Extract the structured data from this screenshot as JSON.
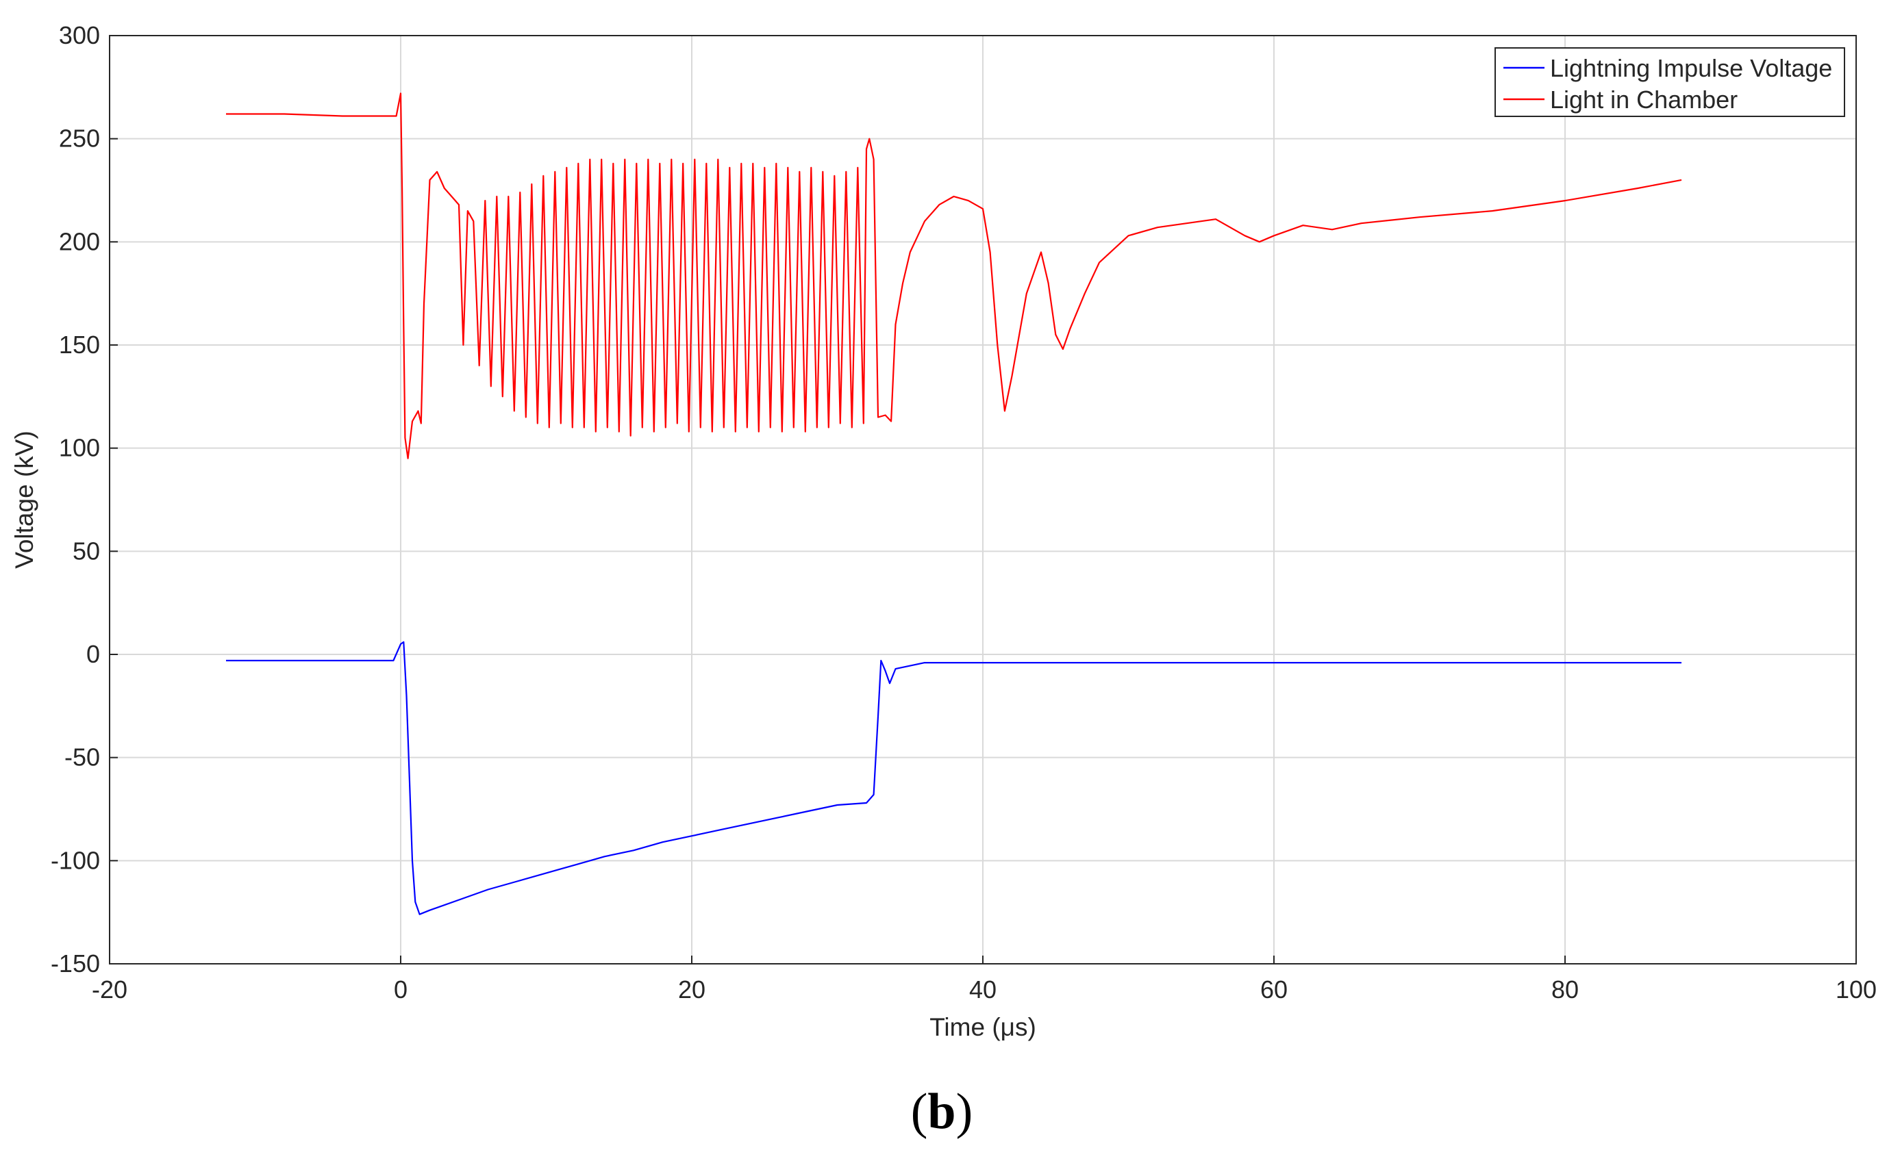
{
  "figure": {
    "panel_label_open": "(",
    "panel_label_letter": "b",
    "panel_label_close": ")"
  },
  "chart_data": {
    "type": "line",
    "title": "",
    "xlabel": "Time (μs)",
    "ylabel": "Voltage (kV)",
    "xlim": [
      -20,
      100
    ],
    "ylim": [
      -150,
      300
    ],
    "x_ticks": [
      -20,
      0,
      20,
      40,
      60,
      80,
      100
    ],
    "y_ticks": [
      -150,
      -100,
      -50,
      0,
      50,
      100,
      150,
      200,
      250,
      300
    ],
    "grid": true,
    "legend_position": "top-right",
    "series": [
      {
        "name": "Lightning Impulse Voltage",
        "color": "#0000ff",
        "points": [
          [
            -12,
            -3
          ],
          [
            -8,
            -3
          ],
          [
            -4,
            -3
          ],
          [
            -0.5,
            -3
          ],
          [
            0,
            5
          ],
          [
            0.2,
            6
          ],
          [
            0.4,
            -20
          ],
          [
            0.6,
            -60
          ],
          [
            0.8,
            -100
          ],
          [
            1,
            -120
          ],
          [
            1.3,
            -126
          ],
          [
            2,
            -124
          ],
          [
            4,
            -119
          ],
          [
            6,
            -114
          ],
          [
            8,
            -110
          ],
          [
            10,
            -106
          ],
          [
            12,
            -102
          ],
          [
            14,
            -98
          ],
          [
            16,
            -95
          ],
          [
            18,
            -91
          ],
          [
            20,
            -88
          ],
          [
            22,
            -85
          ],
          [
            24,
            -82
          ],
          [
            26,
            -79
          ],
          [
            28,
            -76
          ],
          [
            30,
            -73
          ],
          [
            32,
            -72
          ],
          [
            32.5,
            -68
          ],
          [
            32.8,
            -30
          ],
          [
            33,
            -3
          ],
          [
            33.3,
            -8
          ],
          [
            33.6,
            -14
          ],
          [
            34,
            -7
          ],
          [
            36,
            -4
          ],
          [
            40,
            -4
          ],
          [
            50,
            -4
          ],
          [
            60,
            -4
          ],
          [
            70,
            -4
          ],
          [
            80,
            -4
          ],
          [
            88,
            -4
          ]
        ]
      },
      {
        "name": "Light in Chamber",
        "color": "#ff0000",
        "points": [
          [
            -12,
            262
          ],
          [
            -8,
            262
          ],
          [
            -4,
            261
          ],
          [
            -0.3,
            261
          ],
          [
            0,
            272
          ],
          [
            0.1,
            225
          ],
          [
            0.2,
            160
          ],
          [
            0.3,
            105
          ],
          [
            0.5,
            95
          ],
          [
            0.8,
            113
          ],
          [
            1.2,
            118
          ],
          [
            1.4,
            112
          ],
          [
            1.6,
            170
          ],
          [
            2,
            230
          ],
          [
            2.5,
            234
          ],
          [
            3,
            226
          ],
          [
            3.5,
            222
          ],
          [
            4,
            218
          ],
          [
            4.3,
            150
          ],
          [
            4.6,
            215
          ],
          [
            5,
            210
          ],
          [
            5.4,
            140
          ],
          [
            5.8,
            220
          ],
          [
            6.2,
            130
          ],
          [
            6.6,
            222
          ],
          [
            7,
            125
          ],
          [
            7.4,
            222
          ],
          [
            7.8,
            118
          ],
          [
            8.2,
            224
          ],
          [
            8.6,
            115
          ],
          [
            9,
            228
          ],
          [
            9.4,
            112
          ],
          [
            9.8,
            232
          ],
          [
            10.2,
            110
          ],
          [
            10.6,
            234
          ],
          [
            11,
            112
          ],
          [
            11.4,
            236
          ],
          [
            11.8,
            110
          ],
          [
            12.2,
            238
          ],
          [
            12.6,
            110
          ],
          [
            13,
            240
          ],
          [
            13.4,
            108
          ],
          [
            13.8,
            240
          ],
          [
            14.2,
            110
          ],
          [
            14.6,
            238
          ],
          [
            15,
            108
          ],
          [
            15.4,
            240
          ],
          [
            15.8,
            106
          ],
          [
            16.2,
            238
          ],
          [
            16.6,
            110
          ],
          [
            17,
            240
          ],
          [
            17.4,
            108
          ],
          [
            17.8,
            238
          ],
          [
            18.2,
            110
          ],
          [
            18.6,
            240
          ],
          [
            19,
            112
          ],
          [
            19.4,
            238
          ],
          [
            19.8,
            108
          ],
          [
            20.2,
            240
          ],
          [
            20.6,
            110
          ],
          [
            21,
            238
          ],
          [
            21.4,
            108
          ],
          [
            21.8,
            240
          ],
          [
            22.2,
            110
          ],
          [
            22.6,
            236
          ],
          [
            23,
            108
          ],
          [
            23.4,
            238
          ],
          [
            23.8,
            110
          ],
          [
            24.2,
            238
          ],
          [
            24.6,
            108
          ],
          [
            25,
            236
          ],
          [
            25.4,
            110
          ],
          [
            25.8,
            238
          ],
          [
            26.2,
            108
          ],
          [
            26.6,
            236
          ],
          [
            27,
            110
          ],
          [
            27.4,
            234
          ],
          [
            27.8,
            108
          ],
          [
            28.2,
            236
          ],
          [
            28.6,
            110
          ],
          [
            29,
            234
          ],
          [
            29.4,
            110
          ],
          [
            29.8,
            232
          ],
          [
            30.2,
            112
          ],
          [
            30.6,
            234
          ],
          [
            31,
            110
          ],
          [
            31.4,
            236
          ],
          [
            31.8,
            112
          ],
          [
            32,
            245
          ],
          [
            32.2,
            250
          ],
          [
            32.5,
            240
          ],
          [
            32.8,
            115
          ],
          [
            33.3,
            116
          ],
          [
            33.7,
            113
          ],
          [
            34,
            160
          ],
          [
            34.5,
            180
          ],
          [
            35,
            195
          ],
          [
            36,
            210
          ],
          [
            37,
            218
          ],
          [
            38,
            222
          ],
          [
            39,
            220
          ],
          [
            40,
            216
          ],
          [
            40.5,
            195
          ],
          [
            41,
            150
          ],
          [
            41.5,
            118
          ],
          [
            42,
            135
          ],
          [
            43,
            175
          ],
          [
            44,
            195
          ],
          [
            44.5,
            180
          ],
          [
            45,
            155
          ],
          [
            45.5,
            148
          ],
          [
            46,
            158
          ],
          [
            47,
            175
          ],
          [
            48,
            190
          ],
          [
            50,
            203
          ],
          [
            52,
            207
          ],
          [
            54,
            209
          ],
          [
            56,
            211
          ],
          [
            58,
            203
          ],
          [
            59,
            200
          ],
          [
            60,
            203
          ],
          [
            62,
            208
          ],
          [
            64,
            206
          ],
          [
            66,
            209
          ],
          [
            70,
            212
          ],
          [
            75,
            215
          ],
          [
            80,
            220
          ],
          [
            85,
            226
          ],
          [
            88,
            230
          ]
        ]
      }
    ]
  }
}
